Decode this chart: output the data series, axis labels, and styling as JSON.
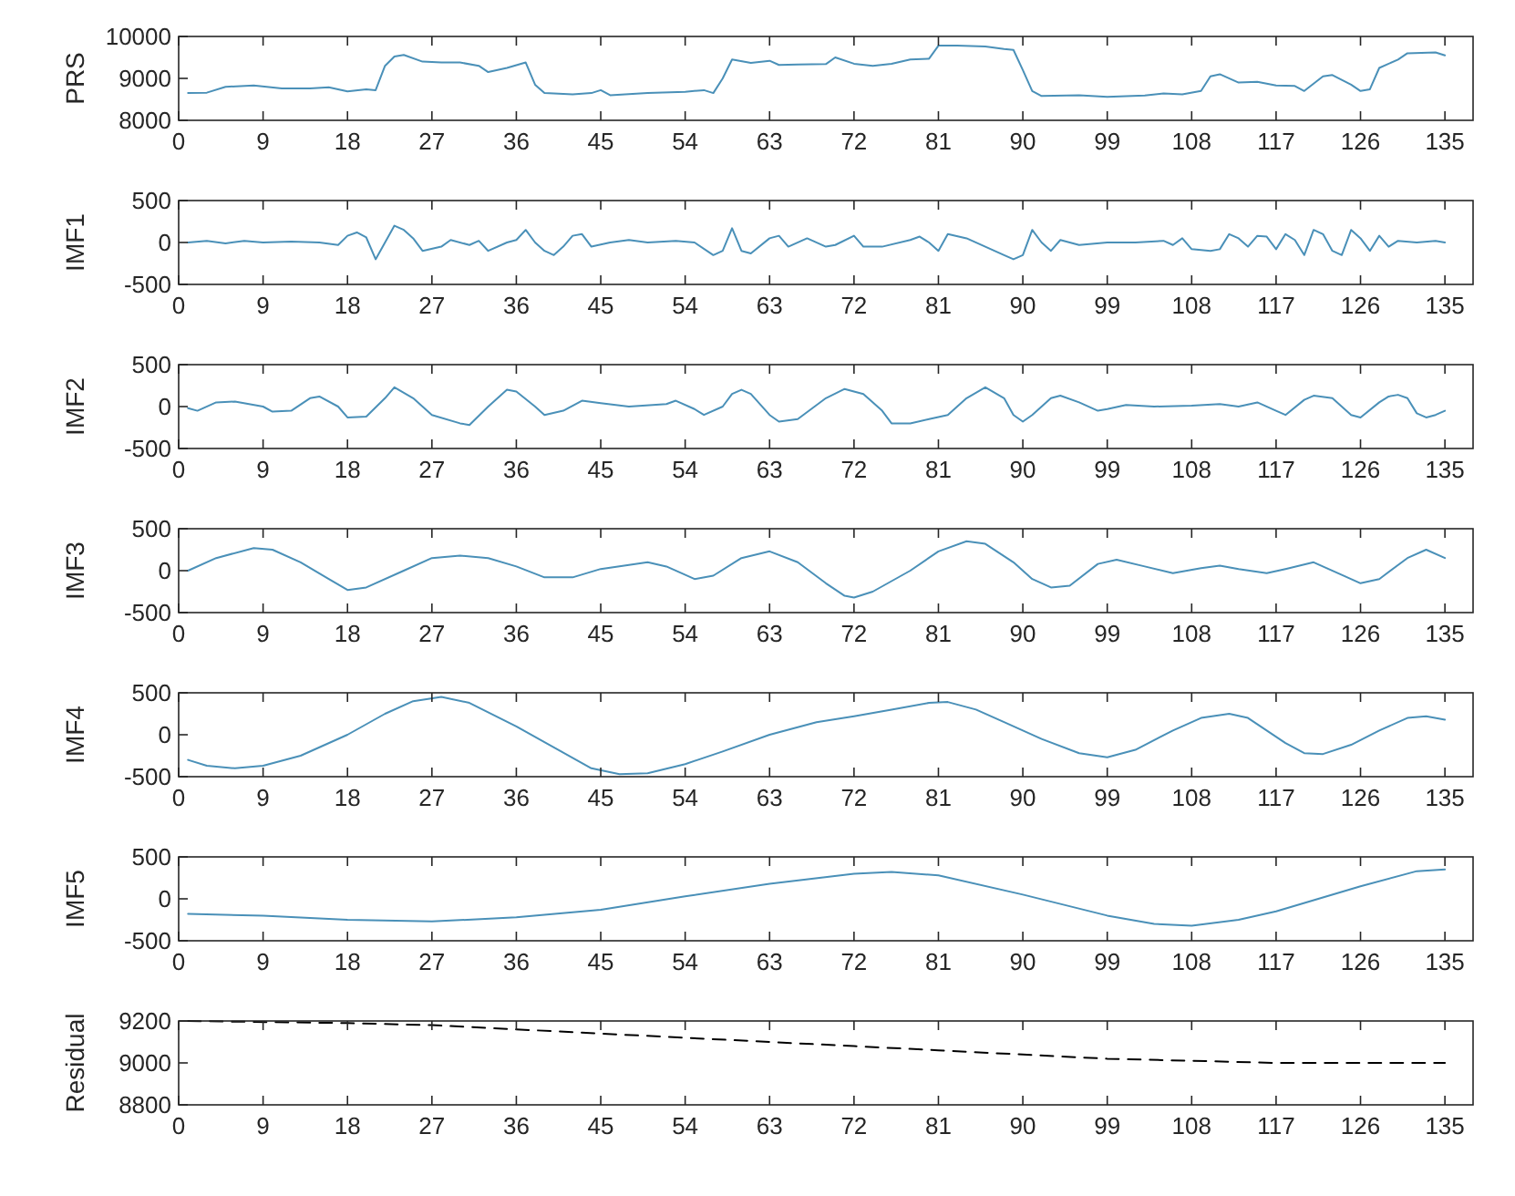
{
  "chart_data": [
    {
      "type": "line",
      "ylabel": "PRS",
      "xlim": [
        0,
        138
      ],
      "xticks": [
        0,
        9,
        18,
        27,
        36,
        45,
        54,
        63,
        72,
        81,
        90,
        99,
        108,
        117,
        126,
        135
      ],
      "ylim": [
        8000,
        10000
      ],
      "yticks": [
        8000,
        9000,
        10000
      ],
      "color": "#4a90b8",
      "grid": false,
      "x": [
        1,
        3,
        5,
        8,
        11,
        14,
        16,
        18,
        20,
        21,
        22,
        23,
        24,
        26,
        28,
        30,
        32,
        33,
        35,
        37,
        38,
        39,
        42,
        44,
        45,
        46,
        50,
        54,
        56,
        57,
        58,
        59,
        61,
        63,
        64,
        66,
        69,
        70,
        72,
        74,
        76,
        78,
        80,
        81,
        83,
        86,
        88,
        89,
        90,
        91,
        92,
        96,
        99,
        103,
        105,
        107,
        109,
        110,
        111,
        113,
        115,
        117,
        119,
        120,
        122,
        123,
        125,
        126,
        127,
        128,
        130,
        131,
        134,
        135
      ],
      "values": [
        8650,
        8660,
        8800,
        8830,
        8760,
        8760,
        8790,
        8690,
        8740,
        8720,
        9300,
        9520,
        9560,
        9400,
        9380,
        9380,
        9300,
        9150,
        9250,
        9380,
        8850,
        8650,
        8620,
        8650,
        8720,
        8600,
        8650,
        8680,
        8720,
        8650,
        9000,
        9450,
        9370,
        9420,
        9320,
        9330,
        9340,
        9500,
        9350,
        9300,
        9350,
        9450,
        9470,
        9780,
        9780,
        9760,
        9700,
        9680,
        9200,
        8700,
        8580,
        8600,
        8560,
        8590,
        8640,
        8620,
        8700,
        9050,
        9100,
        8900,
        8920,
        8830,
        8820,
        8700,
        9050,
        9080,
        8850,
        8700,
        8740,
        9250,
        9450,
        9600,
        9620,
        9550
      ]
    },
    {
      "type": "line",
      "ylabel": "IMF1",
      "xlim": [
        0,
        138
      ],
      "xticks": [
        0,
        9,
        18,
        27,
        36,
        45,
        54,
        63,
        72,
        81,
        90,
        99,
        108,
        117,
        126,
        135
      ],
      "ylim": [
        -500,
        500
      ],
      "yticks": [
        -500,
        0,
        500
      ],
      "color": "#4a90b8",
      "grid": false,
      "x": [
        1,
        3,
        5,
        7,
        9,
        12,
        15,
        17,
        18,
        19,
        20,
        21,
        22,
        23,
        24,
        25,
        26,
        28,
        29,
        31,
        32,
        33,
        35,
        36,
        37,
        38,
        39,
        40,
        41,
        42,
        43,
        44,
        46,
        48,
        50,
        53,
        55,
        57,
        58,
        59,
        60,
        61,
        63,
        64,
        65,
        67,
        69,
        70,
        72,
        73,
        75,
        78,
        79,
        80,
        81,
        82,
        84,
        86,
        88,
        89,
        90,
        91,
        92,
        93,
        94,
        96,
        99,
        102,
        105,
        106,
        107,
        108,
        110,
        111,
        112,
        113,
        114,
        115,
        116,
        117,
        118,
        119,
        120,
        121,
        122,
        123,
        124,
        125,
        126,
        127,
        128,
        129,
        130,
        132,
        134,
        135
      ],
      "values": [
        0,
        20,
        -10,
        20,
        0,
        10,
        0,
        -30,
        80,
        120,
        60,
        -200,
        0,
        200,
        150,
        50,
        -100,
        -50,
        30,
        -30,
        20,
        -100,
        0,
        30,
        150,
        0,
        -100,
        -150,
        -50,
        80,
        100,
        -50,
        0,
        30,
        0,
        20,
        0,
        -150,
        -100,
        170,
        -100,
        -130,
        50,
        80,
        -50,
        50,
        -50,
        -30,
        80,
        -50,
        -50,
        30,
        70,
        0,
        -100,
        100,
        50,
        -50,
        -150,
        -200,
        -150,
        150,
        0,
        -100,
        30,
        -30,
        0,
        0,
        20,
        -30,
        50,
        -80,
        -100,
        -80,
        100,
        50,
        -50,
        80,
        70,
        -80,
        100,
        30,
        -150,
        150,
        100,
        -100,
        -150,
        150,
        50,
        -100,
        80,
        -50,
        20,
        0,
        20,
        0
      ]
    },
    {
      "type": "line",
      "ylabel": "IMF2",
      "xlim": [
        0,
        138
      ],
      "xticks": [
        0,
        9,
        18,
        27,
        36,
        45,
        54,
        63,
        72,
        81,
        90,
        99,
        108,
        117,
        126,
        135
      ],
      "ylim": [
        -500,
        500
      ],
      "yticks": [
        -500,
        0,
        500
      ],
      "color": "#4a90b8",
      "grid": false,
      "x": [
        1,
        2,
        4,
        6,
        9,
        10,
        12,
        14,
        15,
        17,
        18,
        20,
        22,
        23,
        25,
        27,
        30,
        31,
        33,
        35,
        36,
        38,
        39,
        41,
        43,
        45,
        48,
        52,
        53,
        55,
        56,
        58,
        59,
        60,
        61,
        63,
        64,
        66,
        69,
        71,
        73,
        75,
        76,
        78,
        80,
        82,
        84,
        86,
        88,
        89,
        90,
        91,
        93,
        94,
        96,
        98,
        99,
        101,
        104,
        108,
        111,
        113,
        115,
        117,
        118,
        120,
        121,
        123,
        125,
        126,
        128,
        129,
        130,
        131,
        132,
        133,
        134,
        135
      ],
      "values": [
        -20,
        -50,
        50,
        60,
        0,
        -60,
        -50,
        100,
        120,
        0,
        -130,
        -120,
        100,
        230,
        100,
        -100,
        -200,
        -220,
        0,
        200,
        180,
        0,
        -100,
        -50,
        70,
        40,
        0,
        30,
        70,
        -30,
        -100,
        0,
        150,
        200,
        150,
        -100,
        -180,
        -150,
        100,
        210,
        150,
        -50,
        -200,
        -200,
        -150,
        -100,
        100,
        230,
        100,
        -100,
        -180,
        -100,
        100,
        130,
        50,
        -50,
        -30,
        20,
        0,
        10,
        30,
        0,
        50,
        -50,
        -100,
        80,
        130,
        100,
        -100,
        -130,
        50,
        120,
        140,
        100,
        -80,
        -130,
        -100,
        -50
      ]
    },
    {
      "type": "line",
      "ylabel": "IMF3",
      "xlim": [
        0,
        138
      ],
      "xticks": [
        0,
        9,
        18,
        27,
        36,
        45,
        54,
        63,
        72,
        81,
        90,
        99,
        108,
        117,
        126,
        135
      ],
      "ylim": [
        -500,
        500
      ],
      "yticks": [
        -500,
        0,
        500
      ],
      "color": "#4a90b8",
      "grid": false,
      "x": [
        1,
        4,
        8,
        10,
        13,
        16,
        18,
        20,
        24,
        27,
        30,
        33,
        36,
        39,
        42,
        45,
        50,
        52,
        55,
        57,
        60,
        63,
        66,
        69,
        71,
        72,
        74,
        78,
        81,
        84,
        86,
        89,
        91,
        93,
        95,
        98,
        100,
        103,
        106,
        109,
        111,
        113,
        116,
        118,
        121,
        124,
        126,
        128,
        131,
        133,
        135
      ],
      "values": [
        0,
        150,
        270,
        250,
        100,
        -100,
        -230,
        -200,
        0,
        150,
        180,
        150,
        50,
        -80,
        -80,
        20,
        100,
        50,
        -100,
        -60,
        150,
        230,
        100,
        -150,
        -300,
        -320,
        -250,
        0,
        230,
        350,
        320,
        100,
        -100,
        -200,
        -180,
        80,
        130,
        50,
        -30,
        30,
        60,
        20,
        -30,
        20,
        100,
        -50,
        -150,
        -100,
        150,
        250,
        150
      ]
    },
    {
      "type": "line",
      "ylabel": "IMF4",
      "xlim": [
        0,
        138
      ],
      "xticks": [
        0,
        9,
        18,
        27,
        36,
        45,
        54,
        63,
        72,
        81,
        90,
        99,
        108,
        117,
        126,
        135
      ],
      "ylim": [
        -500,
        500
      ],
      "yticks": [
        -500,
        0,
        500
      ],
      "color": "#4a90b8",
      "grid": false,
      "x": [
        1,
        3,
        6,
        9,
        13,
        18,
        22,
        25,
        28,
        31,
        36,
        40,
        44,
        47,
        50,
        54,
        58,
        63,
        68,
        72,
        76,
        80,
        82,
        85,
        88,
        92,
        96,
        99,
        102,
        106,
        109,
        112,
        114,
        118,
        120,
        122,
        125,
        128,
        131,
        133,
        135
      ],
      "values": [
        -300,
        -370,
        -400,
        -370,
        -250,
        0,
        250,
        400,
        450,
        380,
        100,
        -150,
        -400,
        -470,
        -460,
        -350,
        -200,
        0,
        150,
        220,
        300,
        380,
        390,
        300,
        150,
        -50,
        -220,
        -270,
        -180,
        50,
        200,
        250,
        200,
        -100,
        -220,
        -230,
        -120,
        50,
        200,
        220,
        180
      ]
    },
    {
      "type": "line",
      "ylabel": "IMF5",
      "xlim": [
        0,
        138
      ],
      "xticks": [
        0,
        9,
        18,
        27,
        36,
        45,
        54,
        63,
        72,
        81,
        90,
        99,
        108,
        117,
        126,
        135
      ],
      "ylim": [
        -500,
        500
      ],
      "yticks": [
        -500,
        0,
        500
      ],
      "color": "#4a90b8",
      "grid": false,
      "x": [
        1,
        9,
        18,
        27,
        36,
        45,
        54,
        63,
        72,
        76,
        81,
        90,
        99,
        104,
        108,
        113,
        117,
        126,
        132,
        135
      ],
      "values": [
        -180,
        -200,
        -250,
        -270,
        -220,
        -130,
        30,
        180,
        300,
        320,
        280,
        50,
        -200,
        -300,
        -320,
        -250,
        -150,
        150,
        330,
        350
      ]
    },
    {
      "type": "line",
      "ylabel": "Residual",
      "xlim": [
        0,
        138
      ],
      "xticks": [
        0,
        9,
        18,
        27,
        36,
        45,
        54,
        63,
        72,
        81,
        90,
        99,
        108,
        117,
        126,
        135
      ],
      "ylim": [
        8800,
        9200
      ],
      "yticks": [
        8800,
        9000,
        9200
      ],
      "color": "#000000",
      "line_style": "dashed",
      "grid": false,
      "x": [
        1,
        18,
        27,
        36,
        45,
        54,
        63,
        72,
        81,
        90,
        99,
        108,
        117,
        126,
        135
      ],
      "values": [
        9200,
        9190,
        9180,
        9160,
        9140,
        9120,
        9100,
        9080,
        9060,
        9040,
        9020,
        9010,
        9000,
        9000,
        9000
      ]
    }
  ]
}
